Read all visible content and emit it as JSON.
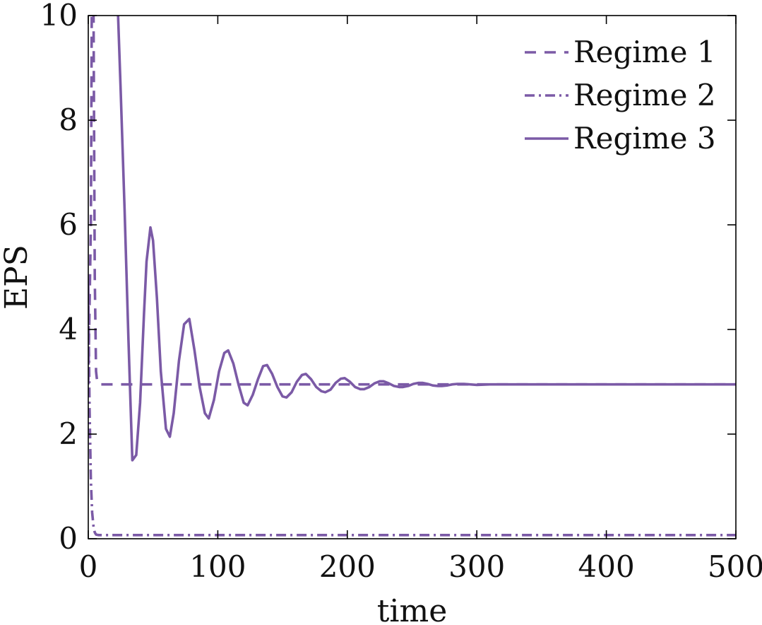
{
  "chart_data": {
    "type": "line",
    "title": "",
    "xlabel": "time",
    "ylabel": "EPS",
    "xlim": [
      0,
      500
    ],
    "ylim": [
      0,
      10
    ],
    "xticks": [
      "0",
      "100",
      "200",
      "300",
      "400",
      "500"
    ],
    "yticks": [
      "0",
      "2",
      "4",
      "6",
      "8",
      "10"
    ],
    "grid": false,
    "legend_position": "top-right",
    "color": "#7b5aa6",
    "series": [
      {
        "name": "Regime 1",
        "style": "dashed",
        "x": [
          0,
          2,
          3,
          4,
          5,
          6,
          7,
          8,
          500
        ],
        "y": [
          2.95,
          6.0,
          12.0,
          10.5,
          5.0,
          3.2,
          2.98,
          2.95,
          2.95
        ]
      },
      {
        "name": "Regime 2",
        "style": "dashdot",
        "x": [
          0,
          1,
          2,
          3,
          4,
          5,
          6,
          8,
          500
        ],
        "y": [
          4.85,
          2.5,
          1.1,
          0.5,
          0.25,
          0.12,
          0.08,
          0.07,
          0.07
        ]
      },
      {
        "name": "Regime 3",
        "style": "solid",
        "x": [
          23,
          25,
          28,
          31,
          34,
          37,
          40,
          43,
          45,
          48,
          50,
          53,
          56,
          60,
          63,
          66,
          70,
          74,
          78,
          82,
          86,
          90,
          93,
          97,
          101,
          105,
          108,
          112,
          116,
          120,
          123,
          127,
          131,
          135,
          138,
          142,
          146,
          150,
          153,
          157,
          161,
          165,
          168,
          172,
          176,
          180,
          183,
          187,
          191,
          195,
          198,
          202,
          206,
          210,
          213,
          217,
          221,
          225,
          228,
          232,
          236,
          240,
          243,
          247,
          251,
          255,
          258,
          262,
          266,
          270,
          273,
          277,
          281,
          285,
          290,
          300,
          310,
          320,
          340,
          360,
          380,
          400,
          450,
          500
        ],
        "y": [
          10.0,
          8.6,
          6.3,
          3.8,
          1.5,
          1.6,
          2.6,
          4.3,
          5.3,
          5.95,
          5.7,
          4.6,
          3.2,
          2.1,
          1.95,
          2.4,
          3.4,
          4.1,
          4.2,
          3.6,
          2.9,
          2.4,
          2.3,
          2.65,
          3.2,
          3.55,
          3.6,
          3.35,
          2.95,
          2.6,
          2.55,
          2.75,
          3.05,
          3.3,
          3.32,
          3.15,
          2.9,
          2.72,
          2.7,
          2.8,
          3.0,
          3.13,
          3.15,
          3.05,
          2.9,
          2.82,
          2.8,
          2.85,
          2.98,
          3.06,
          3.07,
          3.0,
          2.9,
          2.86,
          2.86,
          2.9,
          2.97,
          3.01,
          3.01,
          2.97,
          2.92,
          2.9,
          2.9,
          2.92,
          2.96,
          2.98,
          2.98,
          2.96,
          2.93,
          2.92,
          2.92,
          2.93,
          2.95,
          2.96,
          2.96,
          2.94,
          2.95,
          2.95,
          2.95,
          2.95,
          2.95,
          2.95,
          2.95,
          2.95
        ]
      }
    ]
  }
}
